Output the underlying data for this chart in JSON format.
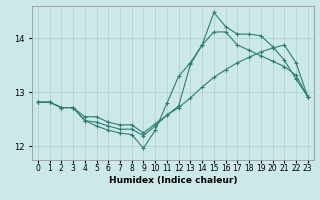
{
  "xlabel": "Humidex (Indice chaleur)",
  "background_color": "#cce8e8",
  "line_color": "#2e7d72",
  "grid_color": "#aacfcf",
  "ylim": [
    11.75,
    14.6
  ],
  "yticks": [
    12,
    13,
    14
  ],
  "line_peak": [
    12.82,
    12.82,
    12.72,
    12.72,
    12.48,
    12.38,
    12.3,
    12.25,
    12.22,
    11.97,
    12.3,
    12.8,
    13.3,
    13.55,
    13.88,
    14.48,
    14.22,
    14.08,
    14.08,
    14.05,
    13.85,
    13.6,
    13.25,
    12.92
  ],
  "line_trend": [
    12.82,
    12.82,
    12.72,
    12.72,
    12.55,
    12.55,
    12.45,
    12.4,
    12.4,
    12.25,
    12.42,
    12.58,
    12.72,
    12.9,
    13.1,
    13.28,
    13.42,
    13.55,
    13.65,
    13.75,
    13.82,
    13.88,
    13.55,
    12.92
  ],
  "line_mid": [
    12.82,
    12.82,
    12.72,
    12.72,
    12.48,
    12.45,
    12.38,
    12.32,
    12.32,
    12.2,
    12.38,
    12.58,
    12.75,
    13.52,
    13.88,
    14.12,
    14.12,
    13.88,
    13.78,
    13.68,
    13.58,
    13.48,
    13.32,
    12.92
  ],
  "tick_fontsize": 5.5,
  "xlabel_fontsize": 6.5
}
